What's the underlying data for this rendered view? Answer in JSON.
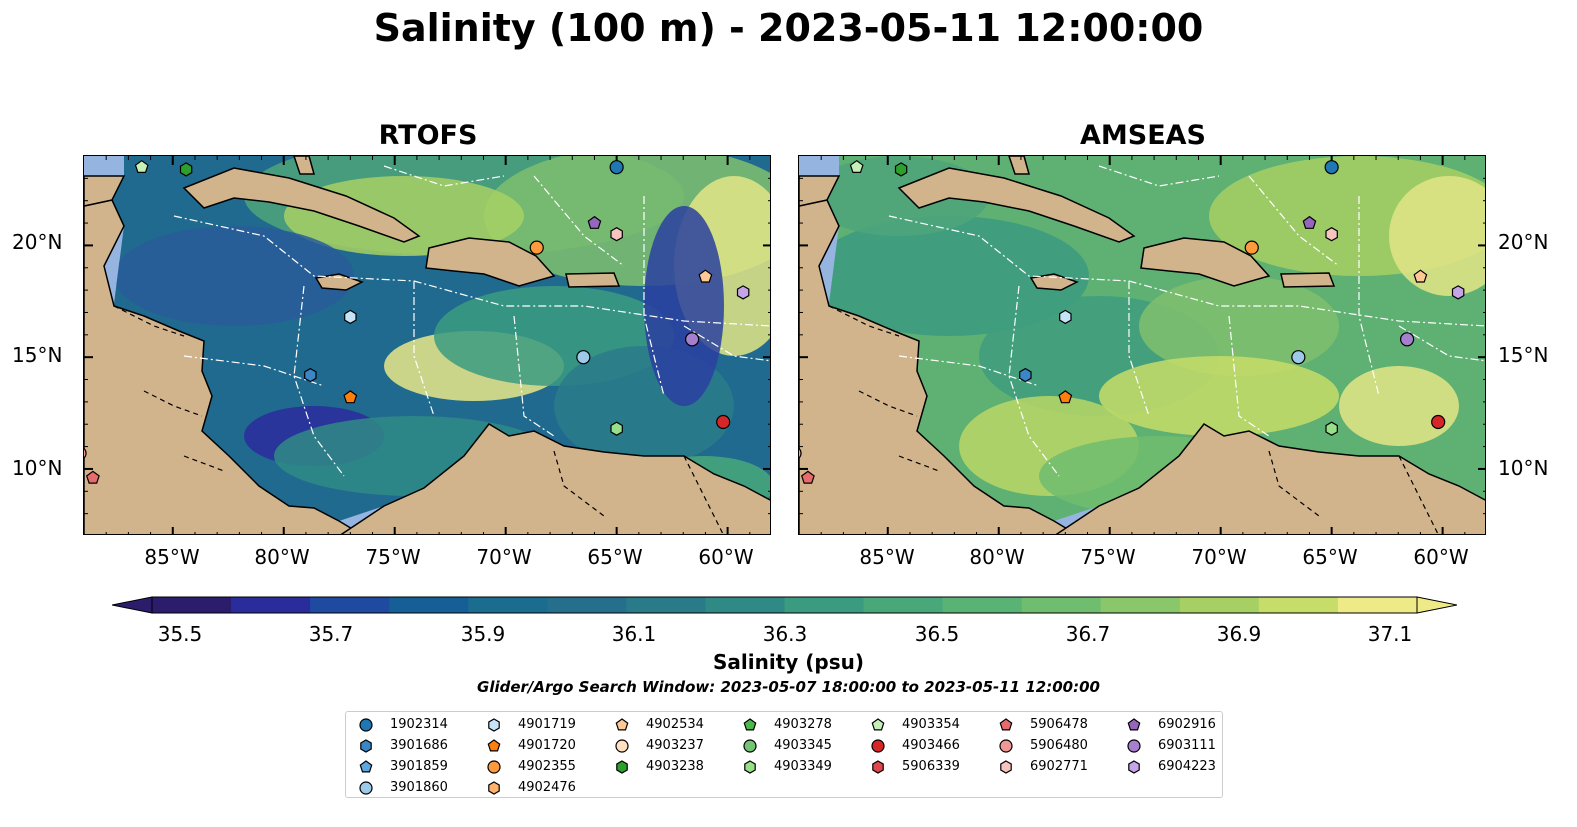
{
  "title": "Salinity (100 m) - 2023-05-11 12:00:00",
  "panels": [
    {
      "id": "rtofs",
      "title": "RTOFS"
    },
    {
      "id": "amseas",
      "title": "AMSEAS"
    }
  ],
  "axes": {
    "lat_ticks": [
      "20°N",
      "15°N",
      "10°N"
    ],
    "lon_ticks": [
      "85°W",
      "80°W",
      "75°W",
      "70°W",
      "65°W",
      "60°W"
    ],
    "lon_range": [
      -89,
      -58
    ],
    "lat_range": [
      7,
      24
    ]
  },
  "colorbar": {
    "label": "Salinity (psu)",
    "ticks": [
      "35.5",
      "35.7",
      "35.9",
      "36.1",
      "36.3",
      "36.5",
      "36.7",
      "36.9",
      "37.1"
    ],
    "range": [
      35.5,
      37.1
    ],
    "extend": "both",
    "colors": [
      "#2b1d6b",
      "#2b2c9c",
      "#1e4aa0",
      "#155f96",
      "#1b6d8f",
      "#256f8c",
      "#2a7b89",
      "#2f8a86",
      "#3b9b80",
      "#49a87a",
      "#58b375",
      "#6fbd6e",
      "#8ac66a",
      "#a7d064",
      "#c7dd69",
      "#eeea88"
    ]
  },
  "search_window": "Glider/Argo Search Window: 2023-05-07 18:00:00 to 2023-05-11 12:00:00",
  "legend": [
    {
      "id": "1902314",
      "marker": "circle",
      "color": "#1f77b4"
    },
    {
      "id": "3901686",
      "marker": "hexagon",
      "color": "#3a87c8"
    },
    {
      "id": "3901859",
      "marker": "pentagon",
      "color": "#5da7e0"
    },
    {
      "id": "3901860",
      "marker": "circle",
      "color": "#9ecae9"
    },
    {
      "id": "4901719",
      "marker": "hexagon",
      "color": "#c6e4f7"
    },
    {
      "id": "4901720",
      "marker": "pentagon",
      "color": "#ff7f0e"
    },
    {
      "id": "4902355",
      "marker": "circle",
      "color": "#ff9a3c"
    },
    {
      "id": "4902476",
      "marker": "hexagon",
      "color": "#ffb26b"
    },
    {
      "id": "4902534",
      "marker": "pentagon",
      "color": "#ffc894"
    },
    {
      "id": "4903237",
      "marker": "circle",
      "color": "#ffe0c0"
    },
    {
      "id": "4903238",
      "marker": "hexagon",
      "color": "#2ca02c"
    },
    {
      "id": "4903278",
      "marker": "pentagon",
      "color": "#4cb84c"
    },
    {
      "id": "4903345",
      "marker": "circle",
      "color": "#74c476"
    },
    {
      "id": "4903349",
      "marker": "hexagon",
      "color": "#98df8a"
    },
    {
      "id": "4903354",
      "marker": "pentagon",
      "color": "#c7f0b8"
    },
    {
      "id": "4903466",
      "marker": "circle",
      "color": "#d62728"
    },
    {
      "id": "5906339",
      "marker": "hexagon",
      "color": "#e0474a"
    },
    {
      "id": "5906478",
      "marker": "pentagon",
      "color": "#e86b6c"
    },
    {
      "id": "5906480",
      "marker": "circle",
      "color": "#f09896"
    },
    {
      "id": "6902771",
      "marker": "hexagon",
      "color": "#f8c4c0"
    },
    {
      "id": "6902916",
      "marker": "pentagon",
      "color": "#9467bd"
    },
    {
      "id": "6903111",
      "marker": "circle",
      "color": "#a77fcf"
    },
    {
      "id": "6904223",
      "marker": "hexagon",
      "color": "#c5a5e8"
    }
  ],
  "floats_on_map": [
    {
      "id": "4903354",
      "lon": -86.4,
      "lat": 23.5
    },
    {
      "id": "4903238",
      "lon": -84.4,
      "lat": 23.4
    },
    {
      "id": "1902314",
      "lon": -65.0,
      "lat": 23.5
    },
    {
      "id": "6902916",
      "lon": -66.0,
      "lat": 21.0
    },
    {
      "id": "6902771",
      "lon": -65.0,
      "lat": 20.5
    },
    {
      "id": "4902355",
      "lon": -68.6,
      "lat": 19.9
    },
    {
      "id": "4902534",
      "lon": -61.0,
      "lat": 18.6
    },
    {
      "id": "6904223",
      "lon": -59.3,
      "lat": 17.9
    },
    {
      "id": "4901719",
      "lon": -77.0,
      "lat": 16.8
    },
    {
      "id": "6903111",
      "lon": -61.6,
      "lat": 15.8
    },
    {
      "id": "3901860",
      "lon": -66.5,
      "lat": 15.0
    },
    {
      "id": "3901686",
      "lon": -78.8,
      "lat": 14.2
    },
    {
      "id": "4901720",
      "lon": -77.0,
      "lat": 13.2
    },
    {
      "id": "4903466",
      "lon": -60.2,
      "lat": 12.1
    },
    {
      "id": "4903349",
      "lon": -65.0,
      "lat": 11.8
    },
    {
      "id": "5906478",
      "lon": -88.6,
      "lat": 9.6
    },
    {
      "id": "5906480",
      "lon": -89.2,
      "lat": 10.7
    }
  ]
}
